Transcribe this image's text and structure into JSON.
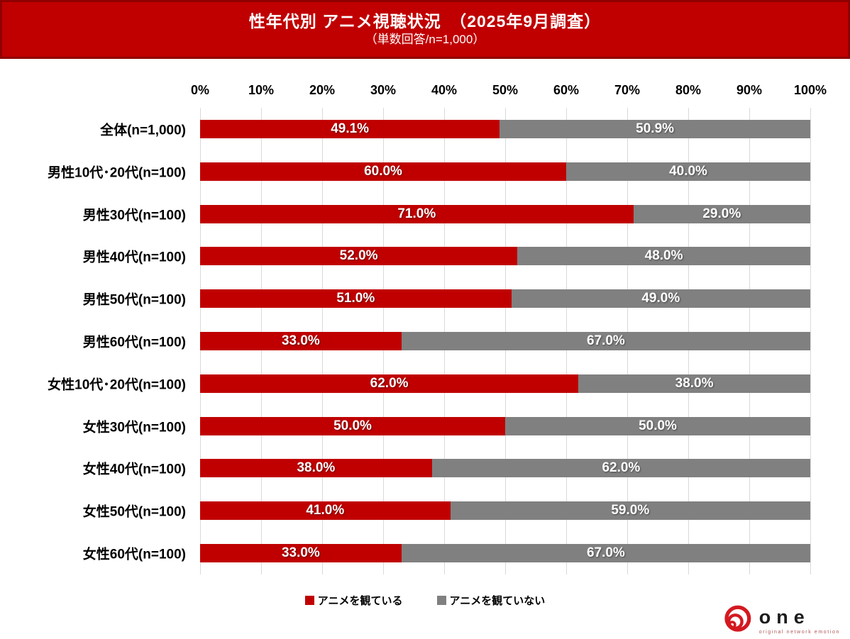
{
  "header": {
    "title": "性年代別 アニメ視聴状況　（2025年9月調査）",
    "subtitle": "（単数回答/n=1,000）",
    "bg_color": "#C00000",
    "border_color": "#8F0000"
  },
  "chart_data": {
    "type": "bar",
    "orientation": "horizontal",
    "stacked": true,
    "title": "性年代別 アニメ視聴状況（2025年9月調査）",
    "subtitle": "単数回答/n=1,000",
    "categories": [
      "全体(n=1,000)",
      "男性10代･20代(n=100)",
      "男性30代(n=100)",
      "男性40代(n=100)",
      "男性50代(n=100)",
      "男性60代(n=100)",
      "女性10代･20代(n=100)",
      "女性30代(n=100)",
      "女性40代(n=100)",
      "女性50代(n=100)",
      "女性60代(n=100)"
    ],
    "series": [
      {
        "name": "アニメを観ている",
        "color": "#C00000",
        "values": [
          49.1,
          60.0,
          71.0,
          52.0,
          51.0,
          33.0,
          62.0,
          50.0,
          38.0,
          41.0,
          33.0
        ]
      },
      {
        "name": "アニメを観ていない",
        "color": "#808080",
        "values": [
          50.9,
          40.0,
          29.0,
          48.0,
          49.0,
          67.0,
          38.0,
          50.0,
          62.0,
          59.0,
          67.0
        ]
      }
    ],
    "x_axis": {
      "position": "top",
      "min": 0,
      "max": 100,
      "ticks": [
        "0%",
        "10%",
        "20%",
        "30%",
        "40%",
        "50%",
        "60%",
        "70%",
        "80%",
        "90%",
        "100%"
      ]
    },
    "grid": true,
    "gridline_color": "#D9D9D9",
    "value_format": "0.0%",
    "legend_position": "bottom"
  },
  "legend": {
    "items": [
      {
        "label": "アニメを観ている",
        "color": "#C00000"
      },
      {
        "label": "アニメを観ていない",
        "color": "#808080"
      }
    ]
  },
  "logo": {
    "text": "one",
    "tagline": "original network emotion",
    "mark_color": "#D41920"
  }
}
